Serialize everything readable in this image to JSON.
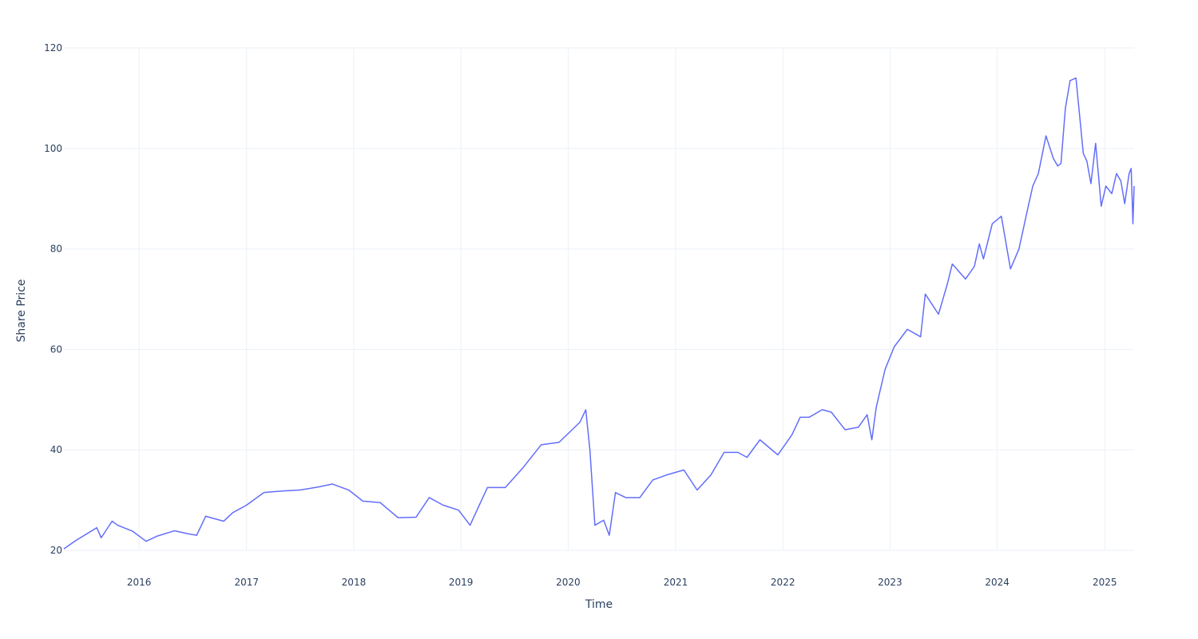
{
  "chart_data": {
    "type": "line",
    "xlabel": "Time",
    "ylabel": "Share Price",
    "xlim": [
      "2015-04-20",
      "2025-04-11"
    ],
    "ylim": [
      20,
      120
    ],
    "x_ticks": [
      "2016",
      "2017",
      "2018",
      "2019",
      "2020",
      "2021",
      "2022",
      "2023",
      "2024",
      "2025"
    ],
    "y_ticks": [
      20,
      40,
      60,
      80,
      100,
      120
    ],
    "grid": true,
    "line_color": "#636efa",
    "series": [
      {
        "x": [
          "2015-04-20",
          "2015-06-01",
          "2015-08-10",
          "2015-08-25",
          "2015-10-01",
          "2015-10-20",
          "2015-12-10",
          "2016-01-25",
          "2016-03-01",
          "2016-05-01",
          "2016-06-15",
          "2016-07-15",
          "2016-08-15",
          "2016-09-01",
          "2016-10-15",
          "2016-11-15",
          "2017-01-01",
          "2017-03-01",
          "2017-05-01",
          "2017-07-01",
          "2017-09-01",
          "2017-10-20",
          "2017-12-15",
          "2018-02-01",
          "2018-04-01",
          "2018-06-01",
          "2018-08-01",
          "2018-09-15",
          "2018-11-01",
          "2018-12-24",
          "2019-02-01",
          "2019-04-01",
          "2019-06-01",
          "2019-08-01",
          "2019-10-01",
          "2019-12-01",
          "2020-02-10",
          "2020-03-01",
          "2020-03-15",
          "2020-04-01",
          "2020-05-01",
          "2020-05-20",
          "2020-06-10",
          "2020-07-15",
          "2020-09-01",
          "2020-10-15",
          "2020-12-01",
          "2021-01-29",
          "2021-03-15",
          "2021-05-01",
          "2021-06-15",
          "2021-08-01",
          "2021-09-01",
          "2021-10-15",
          "2021-12-15",
          "2022-02-01",
          "2022-03-01",
          "2022-04-01",
          "2022-05-15",
          "2022-06-15",
          "2022-08-01",
          "2022-09-15",
          "2022-10-15",
          "2022-10-31",
          "2022-11-15",
          "2022-12-15",
          "2023-01-15",
          "2023-03-01",
          "2023-04-15",
          "2023-05-01",
          "2023-06-15",
          "2023-07-15",
          "2023-08-01",
          "2023-09-15",
          "2023-10-15",
          "2023-11-01",
          "2023-11-15",
          "2023-12-15",
          "2024-01-15",
          "2024-02-15",
          "2024-03-15",
          "2024-04-10",
          "2024-05-01",
          "2024-05-20",
          "2024-06-15",
          "2024-07-10",
          "2024-07-25",
          "2024-08-05",
          "2024-08-20",
          "2024-09-05",
          "2024-09-25",
          "2024-10-05",
          "2024-10-20",
          "2024-11-01",
          "2024-11-15",
          "2024-12-01",
          "2024-12-20",
          "2025-01-05",
          "2025-01-25",
          "2025-02-10",
          "2025-02-25",
          "2025-03-10",
          "2025-03-25",
          "2025-04-01",
          "2025-04-07",
          "2025-04-11"
        ],
        "values": [
          20.3,
          22.0,
          24.5,
          22.5,
          25.8,
          25.0,
          23.8,
          21.8,
          22.8,
          23.9,
          23.3,
          23.0,
          26.8,
          26.5,
          25.8,
          27.5,
          29.0,
          31.5,
          31.8,
          32.0,
          32.6,
          33.2,
          32.0,
          29.8,
          29.5,
          26.5,
          26.6,
          30.5,
          29.0,
          28.0,
          25.0,
          32.5,
          32.5,
          36.5,
          41.0,
          41.5,
          45.5,
          48.0,
          40.0,
          25.0,
          26.0,
          23.0,
          31.5,
          30.5,
          30.5,
          34.0,
          35.0,
          36.0,
          32.0,
          35.0,
          39.5,
          39.5,
          38.5,
          42.0,
          39.0,
          43.0,
          46.5,
          46.5,
          48.0,
          47.5,
          44.0,
          44.5,
          47.0,
          42.0,
          48.5,
          56.0,
          60.5,
          64.0,
          62.5,
          71.0,
          67.0,
          73.0,
          77.0,
          74.0,
          76.5,
          81.0,
          78.0,
          85.0,
          86.5,
          76.0,
          80.0,
          87.0,
          92.5,
          95.0,
          102.5,
          98.0,
          96.5,
          97.0,
          108.0,
          113.5,
          114.0,
          108.0,
          99.0,
          97.5,
          93.0,
          101.0,
          88.5,
          92.5,
          91.0,
          95.0,
          93.5,
          89.0,
          95.0,
          96.0,
          85.0,
          92.5
        ]
      }
    ]
  }
}
